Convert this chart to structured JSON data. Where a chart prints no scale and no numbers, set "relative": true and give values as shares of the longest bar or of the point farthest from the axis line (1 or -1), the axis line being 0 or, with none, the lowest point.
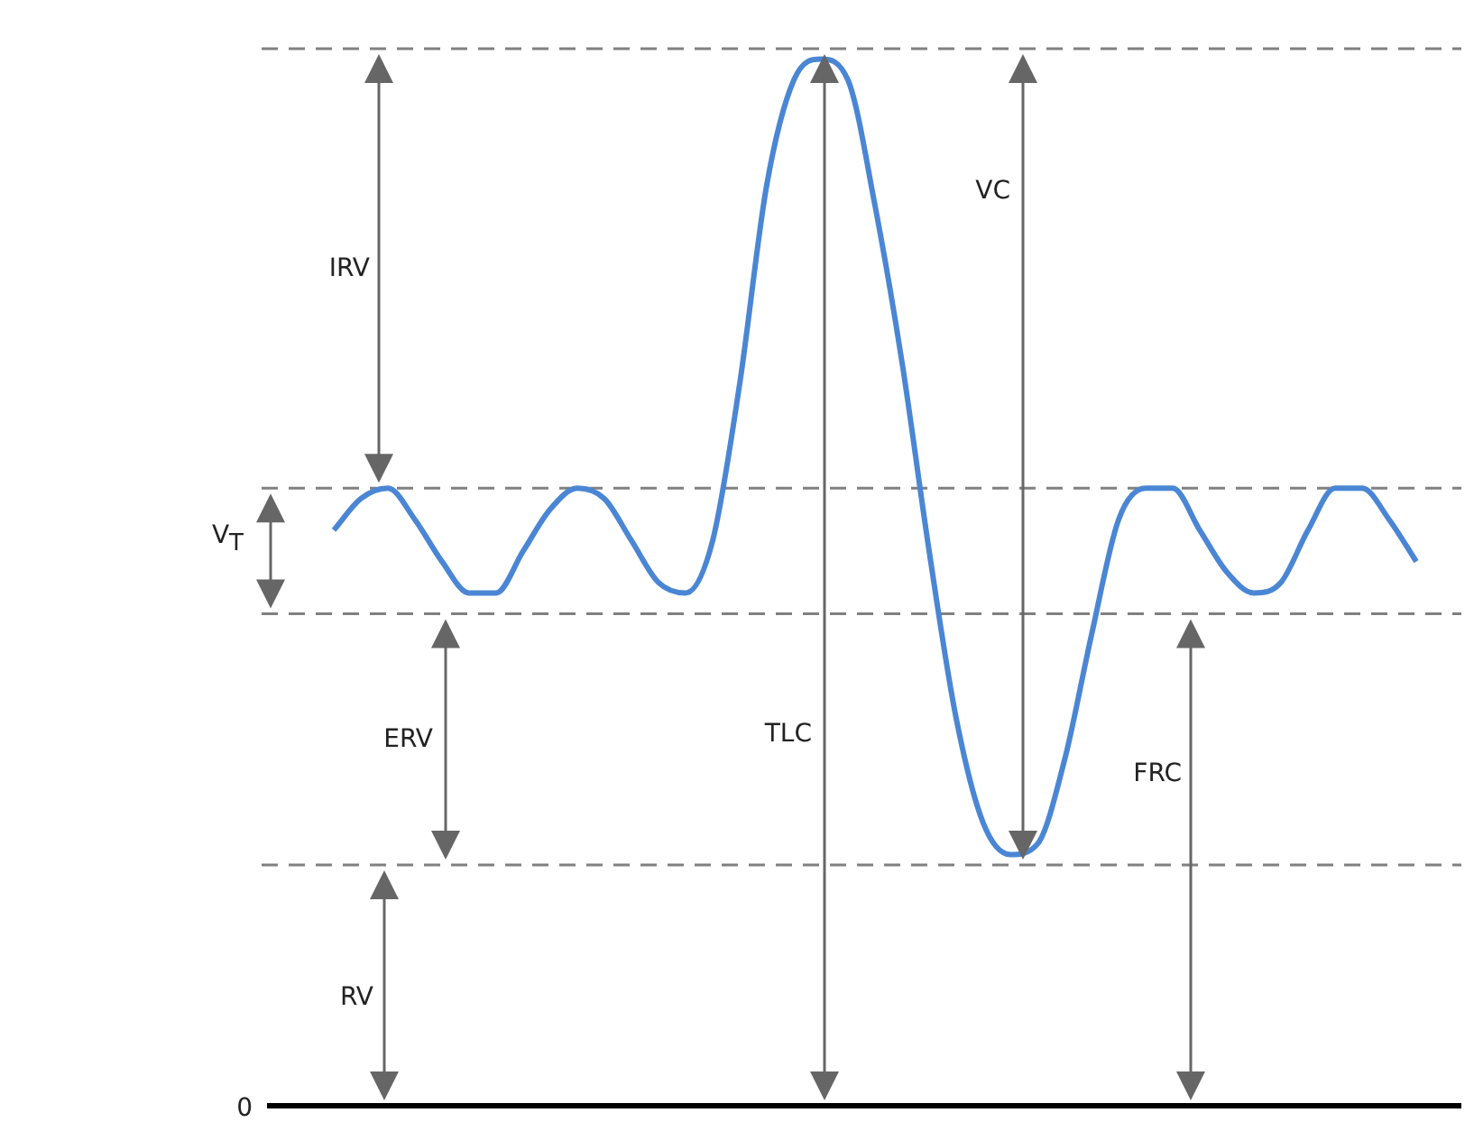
{
  "chart_data": {
    "type": "line",
    "relative": true,
    "marker": "none",
    "categories": [
      null,
      null,
      null,
      null,
      null,
      null,
      null,
      null,
      null,
      null,
      null,
      null,
      null,
      null,
      null,
      null,
      null,
      null,
      null,
      null,
      null,
      null,
      null,
      null,
      null,
      null,
      null,
      null,
      null,
      null,
      null,
      null,
      null,
      null,
      null,
      null,
      null,
      null,
      null,
      null,
      null
    ],
    "series": [
      {
        "color": "#4a86d4",
        "values": [
          0.55,
          0.58,
          0.59,
          0.56,
          0.52,
          0.49,
          0.49,
          0.53,
          0.57,
          0.59,
          0.58,
          0.54,
          0.5,
          0.49,
          0.54,
          0.69,
          0.88,
          0.98,
          1,
          0.98,
          0.86,
          0.71,
          0.53,
          0.37,
          0.27,
          0.24,
          0.25,
          0.33,
          0.45,
          0.56,
          0.59,
          0.59,
          0.55,
          0.51,
          0.49,
          0.5,
          0.55,
          0.59,
          0.59,
          0.56,
          0.52
        ]
      }
    ],
    "ref_lines": [
      {
        "axis": "y",
        "value": 0,
        "label": "0",
        "color": "#000000",
        "line_style": "solid"
      },
      {
        "axis": "y",
        "value": 0.23,
        "color": "#808080",
        "line_style": "dashed"
      },
      {
        "axis": "y",
        "value": 0.47,
        "color": "#808080",
        "line_style": "dashed"
      },
      {
        "axis": "y",
        "value": 0.59,
        "color": "#808080",
        "line_style": "dashed"
      },
      {
        "axis": "y",
        "value": 1.01,
        "color": "#808080",
        "line_style": "dashed"
      }
    ],
    "annotations": [
      "IRV",
      "V$_{T}$",
      "ERV",
      "RV",
      "TLC",
      "VC",
      "FRC"
    ]
  }
}
